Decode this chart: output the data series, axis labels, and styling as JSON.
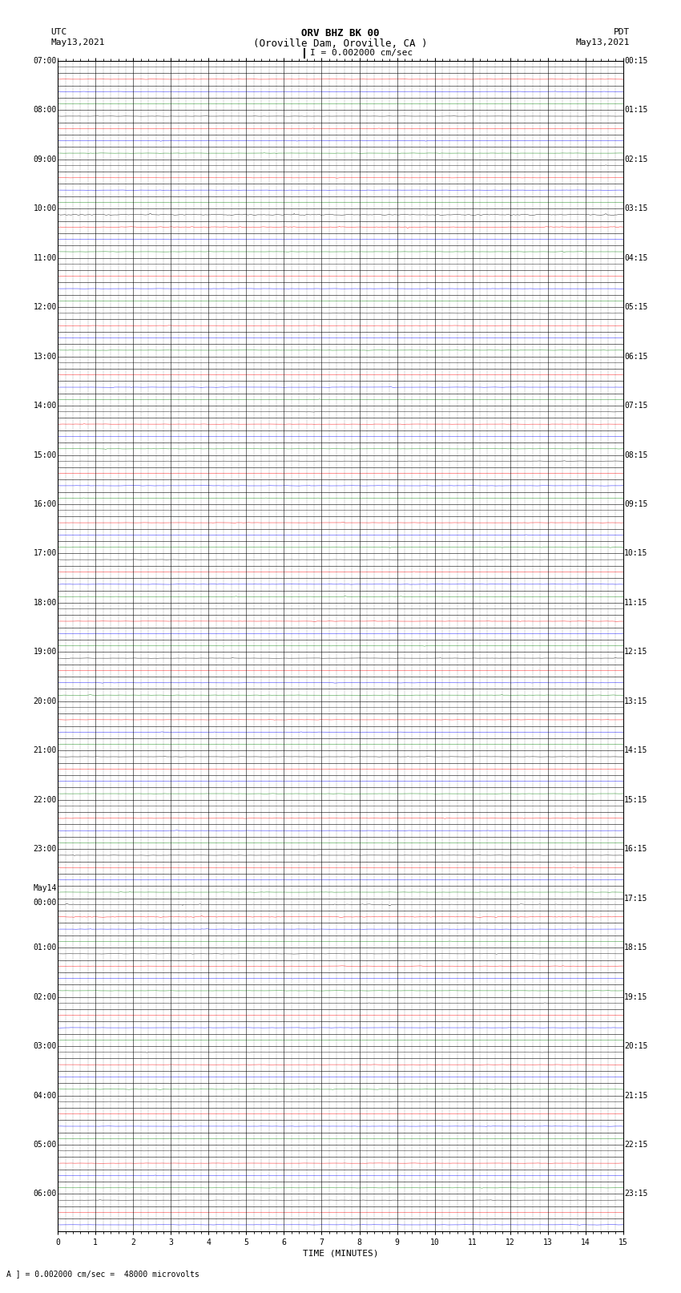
{
  "title_line1": "ORV BHZ BK 00",
  "title_line2": "(Oroville Dam, Oroville, CA )",
  "title_line3": "I = 0.002000 cm/sec",
  "label_left_top": "UTC",
  "label_left_date": "May13,2021",
  "label_right_top": "PDT",
  "label_right_date": "May13,2021",
  "xlabel": "TIME (MINUTES)",
  "footnote": "A ] = 0.002000 cm/sec =  48000 microvolts",
  "utc_times": [
    "07:00",
    "",
    "",
    "",
    "08:00",
    "",
    "",
    "",
    "09:00",
    "",
    "",
    "",
    "10:00",
    "",
    "",
    "",
    "11:00",
    "",
    "",
    "",
    "12:00",
    "",
    "",
    "",
    "13:00",
    "",
    "",
    "",
    "14:00",
    "",
    "",
    "",
    "15:00",
    "",
    "",
    "",
    "16:00",
    "",
    "",
    "",
    "17:00",
    "",
    "",
    "",
    "18:00",
    "",
    "",
    "",
    "19:00",
    "",
    "",
    "",
    "20:00",
    "",
    "",
    "",
    "21:00",
    "",
    "",
    "",
    "22:00",
    "",
    "",
    "",
    "23:00",
    "",
    "",
    "",
    "May14\n00:00",
    "",
    "",
    "",
    "01:00",
    "",
    "",
    "",
    "02:00",
    "",
    "",
    "",
    "03:00",
    "",
    "",
    "",
    "04:00",
    "",
    "",
    "",
    "05:00",
    "",
    "",
    "",
    "06:00",
    "",
    ""
  ],
  "pdt_times": [
    "00:15",
    "",
    "",
    "",
    "01:15",
    "",
    "",
    "",
    "02:15",
    "",
    "",
    "",
    "03:15",
    "",
    "",
    "",
    "04:15",
    "",
    "",
    "",
    "05:15",
    "",
    "",
    "",
    "06:15",
    "",
    "",
    "",
    "07:15",
    "",
    "",
    "",
    "08:15",
    "",
    "",
    "",
    "09:15",
    "",
    "",
    "",
    "10:15",
    "",
    "",
    "",
    "11:15",
    "",
    "",
    "",
    "12:15",
    "",
    "",
    "",
    "13:15",
    "",
    "",
    "",
    "14:15",
    "",
    "",
    "",
    "15:15",
    "",
    "",
    "",
    "16:15",
    "",
    "",
    "",
    "17:15",
    "",
    "",
    "",
    "18:15",
    "",
    "",
    "",
    "19:15",
    "",
    "",
    "",
    "20:15",
    "",
    "",
    "",
    "21:15",
    "",
    "",
    "",
    "22:15",
    "",
    "",
    "",
    "23:15",
    "",
    ""
  ],
  "n_rows": 95,
  "n_minutes": 15,
  "bg_color": "#ffffff",
  "colors_cycle": [
    "#000000",
    "#ff0000",
    "#0000ff",
    "#008000"
  ],
  "grid_color": "#000000",
  "tick_label_fontsize": 7,
  "title_fontsize": 9,
  "seed": 42,
  "row_amplitude": 0.025,
  "active_rows": [
    12,
    13,
    68,
    69
  ],
  "active_amplitude": 0.08
}
